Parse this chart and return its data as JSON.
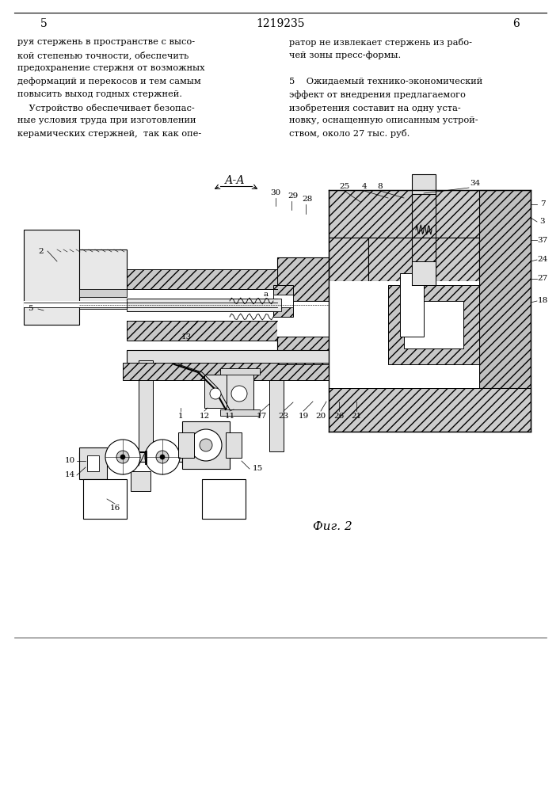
{
  "bg_color": "#ffffff",
  "top_left_num": "5",
  "top_center_num": "1219235",
  "top_right_num": "6",
  "left_col_lines": [
    "руя стержень в пространстве с высо-",
    "кой степенью точности, обеспечить",
    "предохранение стержня от возможных",
    "деформаций и перекосов и тем самым",
    "повысить выход годных стержней.",
    "    Устройство обеспечивает безопас-",
    "ные условия труда при изготовлении",
    "керамических стержней,  так как опе-"
  ],
  "right_col_lines": [
    "ратор не извлекает стержень из рабо-",
    "чей зоны пресс-формы.",
    "",
    "5    Ожидаемый технико-экономический",
    "эффект от внедрения предлагаемого",
    "изобретения составит на одну уста-",
    "новку, оснащенную описанным устрой-",
    "ством, около 27 тыс. руб."
  ],
  "fig_label": "Фиг. 2",
  "aa_label": "А-А"
}
